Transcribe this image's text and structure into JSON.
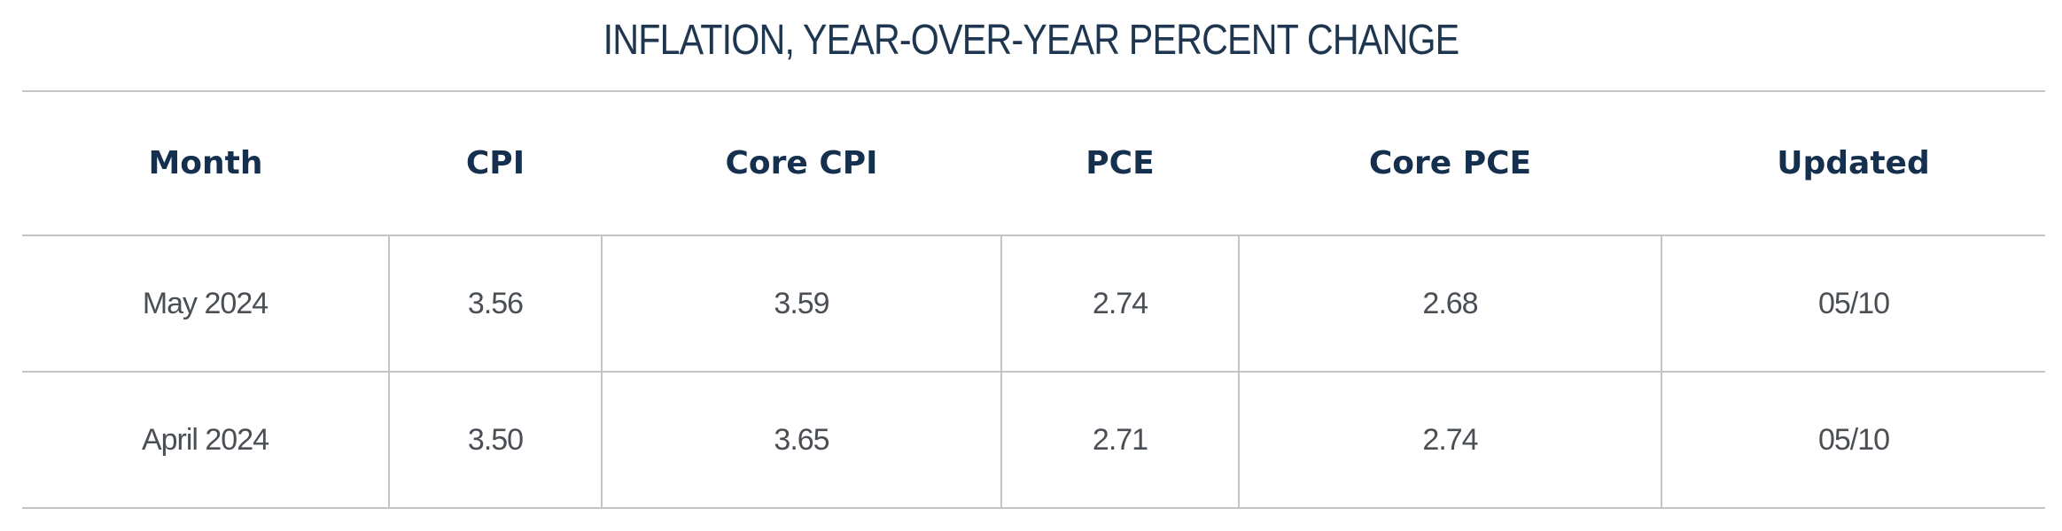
{
  "title": "INFLATION, YEAR-OVER-YEAR PERCENT CHANGE",
  "colors": {
    "header_text": "#14304e",
    "title_text": "#1f3651",
    "body_text": "#4a4f56",
    "rule": "#c4c4c4"
  },
  "chart_data": {
    "type": "table",
    "title": "INFLATION, YEAR-OVER-YEAR PERCENT CHANGE",
    "columns": [
      "Month",
      "CPI",
      "Core CPI",
      "PCE",
      "Core PCE",
      "Updated"
    ],
    "rows": [
      [
        "May 2024",
        "3.56",
        "3.59",
        "2.74",
        "2.68",
        "05/10"
      ],
      [
        "April 2024",
        "3.50",
        "3.65",
        "2.71",
        "2.74",
        "05/10"
      ]
    ]
  }
}
